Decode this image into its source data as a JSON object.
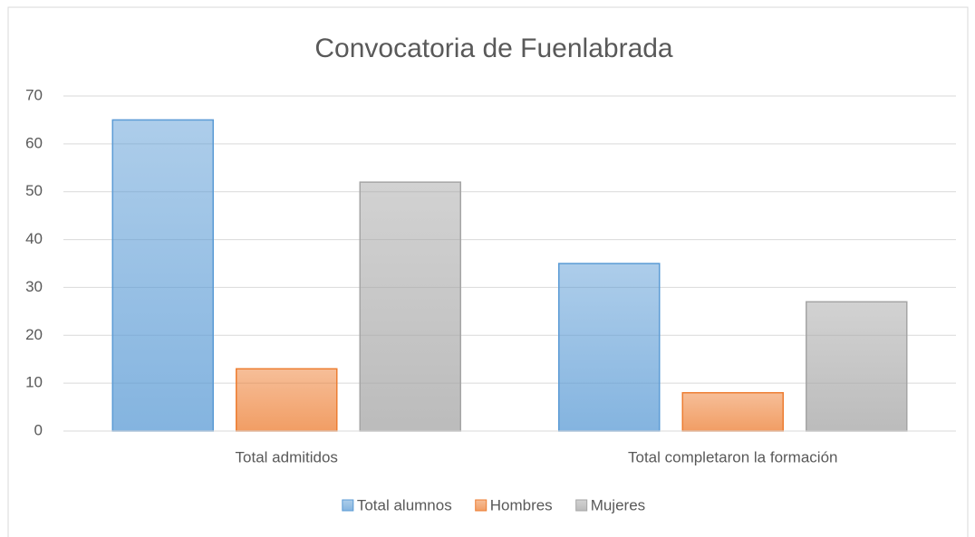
{
  "chart_data": {
    "type": "bar",
    "title": "Convocatoria de Fuenlabrada",
    "categories": [
      "Total admitidos",
      "Total completaron la formación"
    ],
    "series": [
      {
        "name": "Total alumnos",
        "color": "#5b9bd5",
        "values": [
          65,
          35
        ]
      },
      {
        "name": "Hombres",
        "color": "#ed7d31",
        "values": [
          13,
          8
        ]
      },
      {
        "name": "Mujeres",
        "color": "#a5a5a5",
        "values": [
          52,
          27
        ]
      }
    ],
    "ylim": [
      0,
      70
    ],
    "yticks": [
      0,
      10,
      20,
      30,
      40,
      50,
      60,
      70
    ],
    "grid": true,
    "legend": "bottom"
  }
}
